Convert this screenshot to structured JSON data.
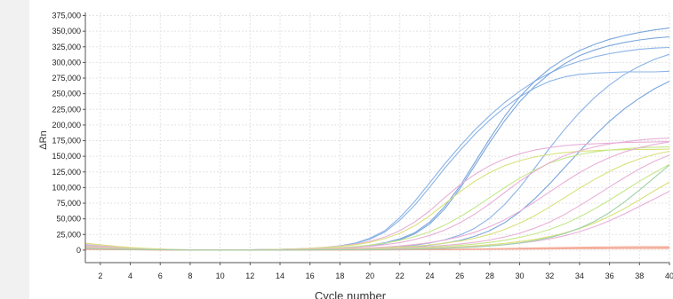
{
  "colors": {
    "background": "#ffffff",
    "side_strip": "#f1f1f1",
    "grid": "#e3e3e3",
    "axis": "#555555",
    "series_palette": [
      "#8ab3e6",
      "#7aa6dc",
      "#e8b0d8",
      "#d9e07a",
      "#c5e78a",
      "#f3a99a",
      "#f4b99e",
      "#9fd0a8"
    ]
  },
  "chart_data": {
    "type": "line",
    "title": "",
    "xlabel": "Cycle number",
    "ylabel": "ΔRn",
    "xlim": [
      1,
      40
    ],
    "ylim": [
      -20000,
      380000
    ],
    "x_ticks": [
      2,
      4,
      6,
      8,
      10,
      12,
      14,
      16,
      18,
      20,
      22,
      24,
      26,
      28,
      30,
      32,
      34,
      36,
      38,
      40
    ],
    "y_ticks": [
      0,
      25000,
      50000,
      75000,
      100000,
      125000,
      150000,
      175000,
      200000,
      225000,
      250000,
      275000,
      300000,
      325000,
      350000,
      375000
    ],
    "y_tick_labels": [
      "0",
      "25,000",
      "50,000",
      "75,000",
      "100,000",
      "125,000",
      "150,000",
      "175,000",
      "200,000",
      "225,000",
      "250,000",
      "275,000",
      "300,000",
      "325,000",
      "350,000",
      "375,000"
    ],
    "grid": true,
    "legend": "none",
    "series": [
      {
        "color": "#8ab3e6",
        "values": [
          8000,
          6000,
          4500,
          3000,
          2000,
          1200,
          600,
          300,
          200,
          200,
          300,
          500,
          800,
          1200,
          1800,
          2700,
          4300,
          7000,
          11000,
          19000,
          31000,
          52000,
          78000,
          108000,
          138000,
          166000,
          192000,
          215000,
          236000,
          254000,
          270000,
          283000,
          294000,
          302000,
          309000,
          314000,
          318000,
          321000,
          323000,
          324000
        ]
      },
      {
        "color": "#8ab3e6",
        "values": [
          7000,
          5500,
          4000,
          2800,
          1800,
          1100,
          600,
          300,
          200,
          200,
          300,
          500,
          800,
          1200,
          1700,
          2600,
          4100,
          6600,
          10500,
          17500,
          29000,
          48000,
          72000,
          101000,
          131000,
          159000,
          185000,
          208000,
          228000,
          245000,
          259000,
          270000,
          277000,
          281000,
          283000,
          284000,
          285000,
          285000,
          285000,
          286000
        ]
      },
      {
        "color": "#7aa6dc",
        "values": [
          6000,
          4800,
          3600,
          2500,
          1700,
          1000,
          500,
          300,
          200,
          200,
          200,
          300,
          500,
          800,
          1100,
          1600,
          2400,
          3500,
          5200,
          7800,
          11800,
          18000,
          28000,
          45000,
          70000,
          102000,
          140000,
          178000,
          214000,
          245000,
          270000,
          290000,
          306000,
          319000,
          329000,
          337000,
          343000,
          348000,
          352000,
          355000
        ]
      },
      {
        "color": "#7aa6dc",
        "values": [
          5000,
          4000,
          3000,
          2100,
          1400,
          900,
          500,
          300,
          200,
          200,
          200,
          300,
          400,
          700,
          1000,
          1400,
          2100,
          3100,
          4700,
          7100,
          10700,
          16500,
          26000,
          42000,
          66000,
          98000,
          135000,
          172000,
          207000,
          237000,
          262000,
          282000,
          298000,
          311000,
          320000,
          327000,
          332000,
          336000,
          339000,
          341000
        ]
      },
      {
        "color": "#8ab3e6",
        "values": [
          4000,
          3200,
          2400,
          1700,
          1200,
          800,
          400,
          200,
          100,
          100,
          100,
          200,
          300,
          400,
          600,
          800,
          1100,
          1500,
          2100,
          2900,
          4000,
          5600,
          8000,
          11500,
          16500,
          24000,
          35000,
          51000,
          73000,
          100000,
          131000,
          163000,
          193000,
          220000,
          244000,
          264000,
          281000,
          294000,
          305000,
          313000
        ]
      },
      {
        "color": "#7aa6dc",
        "values": [
          3500,
          2800,
          2100,
          1500,
          1000,
          700,
          400,
          200,
          100,
          100,
          100,
          200,
          300,
          400,
          500,
          700,
          900,
          1200,
          1600,
          2200,
          3000,
          4100,
          5700,
          7900,
          11000,
          15500,
          22000,
          31000,
          44000,
          61000,
          82000,
          106000,
          132000,
          158000,
          183000,
          206000,
          226000,
          243000,
          258000,
          270000
        ]
      },
      {
        "color": "#e8b0d8",
        "values": [
          9000,
          7000,
          5200,
          3600,
          2400,
          1500,
          800,
          400,
          200,
          200,
          300,
          500,
          800,
          1300,
          2000,
          3000,
          4500,
          6500,
          9500,
          14000,
          21000,
          31000,
          45000,
          63000,
          84000,
          104000,
          121000,
          135000,
          146000,
          154000,
          160000,
          164000,
          167000,
          169000,
          170000,
          171000,
          172000,
          172500,
          173000,
          173500
        ]
      },
      {
        "color": "#d9e07a",
        "values": [
          11000,
          8500,
          6200,
          4300,
          2800,
          1700,
          900,
          400,
          200,
          200,
          300,
          500,
          800,
          1200,
          1800,
          2700,
          4000,
          5800,
          8500,
          12500,
          18500,
          27000,
          39000,
          55000,
          74000,
          93000,
          110000,
          124000,
          135000,
          143000,
          149000,
          153000,
          156000,
          158000,
          159000,
          160000,
          160500,
          161000,
          161000,
          161500
        ]
      },
      {
        "color": "#c5e78a",
        "values": [
          7000,
          5500,
          4000,
          2800,
          1900,
          1200,
          700,
          400,
          200,
          200,
          300,
          400,
          600,
          900,
          1300,
          1900,
          2800,
          4000,
          5700,
          8000,
          11200,
          15600,
          21500,
          29500,
          40000,
          53000,
          68000,
          84000,
          100000,
          115000,
          128000,
          139000,
          147000,
          153000,
          157000,
          160000,
          162000,
          163500,
          164500,
          165000
        ]
      },
      {
        "color": "#e8b0d8",
        "values": [
          6000,
          4700,
          3500,
          2400,
          1600,
          1000,
          600,
          300,
          200,
          200,
          200,
          300,
          500,
          700,
          1000,
          1500,
          2100,
          3000,
          4300,
          6100,
          8600,
          12000,
          17000,
          23500,
          32000,
          43500,
          57500,
          74000,
          92000,
          110000,
          126000,
          140000,
          151000,
          159000,
          165000,
          170000,
          173000,
          176000,
          178000,
          179000
        ]
      },
      {
        "color": "#e8b0d8",
        "values": [
          5000,
          4000,
          3000,
          2100,
          1400,
          900,
          500,
          300,
          200,
          200,
          200,
          300,
          400,
          600,
          800,
          1100,
          1500,
          2000,
          2700,
          3700,
          5000,
          6700,
          9000,
          12000,
          16000,
          21500,
          28500,
          37500,
          48500,
          62000,
          77000,
          93000,
          109000,
          124000,
          137000,
          148000,
          157000,
          164000,
          169000,
          173000
        ]
      },
      {
        "color": "#d9e07a",
        "values": [
          4500,
          3600,
          2700,
          1900,
          1300,
          800,
          500,
          300,
          200,
          200,
          200,
          300,
          400,
          500,
          700,
          900,
          1200,
          1600,
          2100,
          2800,
          3700,
          4900,
          6400,
          8400,
          11000,
          14500,
          19000,
          25000,
          33000,
          43000,
          55000,
          69000,
          84000,
          99000,
          113000,
          126000,
          137000,
          146000,
          153000,
          158000
        ]
      },
      {
        "color": "#e8b0d8",
        "values": [
          4000,
          3200,
          2400,
          1700,
          1100,
          700,
          400,
          200,
          100,
          100,
          100,
          200,
          300,
          400,
          500,
          700,
          900,
          1200,
          1600,
          2100,
          2700,
          3500,
          4500,
          5800,
          7500,
          9700,
          12500,
          16200,
          21000,
          27000,
          35000,
          45000,
          57000,
          71000,
          86000,
          101000,
          116000,
          130000,
          142000,
          152000
        ]
      },
      {
        "color": "#c5e78a",
        "values": [
          3800,
          3000,
          2300,
          1600,
          1100,
          700,
          400,
          200,
          100,
          100,
          100,
          200,
          300,
          400,
          500,
          600,
          800,
          1000,
          1300,
          1700,
          2200,
          2800,
          3600,
          4600,
          5900,
          7500,
          9600,
          12300,
          15800,
          20300,
          26000,
          33000,
          42000,
          53000,
          66000,
          80000,
          95000,
          110000,
          124000,
          137000
        ]
      },
      {
        "color": "#d9e07a",
        "values": [
          3500,
          2800,
          2100,
          1500,
          1000,
          600,
          300,
          200,
          100,
          100,
          100,
          200,
          200,
          300,
          400,
          500,
          600,
          800,
          1000,
          1300,
          1700,
          2100,
          2700,
          3400,
          4300,
          5400,
          6800,
          8600,
          10800,
          13600,
          17200,
          21700,
          27400,
          34500,
          43300,
          54000,
          66500,
          80500,
          95000,
          109000
        ]
      },
      {
        "color": "#e8b0d8",
        "values": [
          3200,
          2600,
          1900,
          1400,
          900,
          600,
          300,
          200,
          100,
          100,
          100,
          200,
          200,
          300,
          400,
          500,
          600,
          700,
          900,
          1100,
          1400,
          1800,
          2200,
          2800,
          3500,
          4400,
          5500,
          6900,
          8700,
          11000,
          14000,
          18000,
          23000,
          29500,
          37500,
          47000,
          58000,
          70000,
          82000,
          94000
        ]
      },
      {
        "color": "#f3a99a",
        "values": [
          2000,
          1600,
          1200,
          900,
          600,
          400,
          200,
          100,
          0,
          0,
          0,
          0,
          100,
          100,
          200,
          200,
          300,
          300,
          400,
          500,
          600,
          700,
          900,
          1100,
          1300,
          1600,
          1900,
          2300,
          2700,
          3100,
          3500,
          3900,
          4300,
          4600,
          4900,
          5100,
          5300,
          5400,
          5500,
          5600
        ]
      },
      {
        "color": "#f4b99e",
        "values": [
          1500,
          1200,
          900,
          700,
          500,
          300,
          200,
          100,
          0,
          0,
          0,
          0,
          0,
          100,
          100,
          200,
          200,
          300,
          300,
          400,
          500,
          600,
          700,
          800,
          1000,
          1200,
          1400,
          1600,
          1900,
          2200,
          2500,
          2800,
          3100,
          3300,
          3500,
          3700,
          3800,
          3900,
          4000,
          4000
        ]
      },
      {
        "color": "#f3a99a",
        "values": [
          1000,
          800,
          600,
          500,
          300,
          200,
          100,
          0,
          0,
          0,
          0,
          0,
          0,
          0,
          100,
          100,
          100,
          200,
          200,
          300,
          300,
          400,
          500,
          600,
          700,
          800,
          1000,
          1100,
          1300,
          1500,
          1700,
          1900,
          2100,
          2200,
          2300,
          2400,
          2500,
          2500,
          2600,
          2600
        ]
      },
      {
        "color": "#9fd0a8",
        "values": [
          2500,
          2000,
          1500,
          1100,
          700,
          500,
          300,
          100,
          0,
          0,
          0,
          100,
          100,
          200,
          200,
          300,
          400,
          500,
          600,
          800,
          1000,
          1300,
          1700,
          2200,
          2900,
          3800,
          5000,
          6600,
          8700,
          11500,
          15200,
          20000,
          26500,
          35000,
          46000,
          60000,
          77000,
          96000,
          116000,
          136000
        ]
      }
    ]
  }
}
